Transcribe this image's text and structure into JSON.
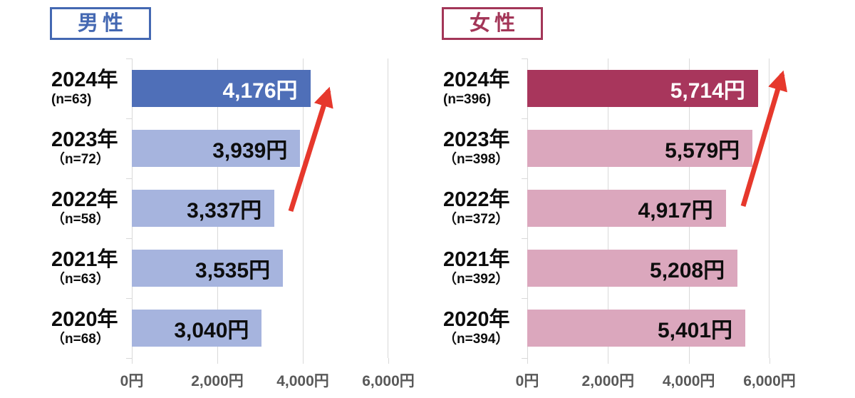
{
  "chart_data": [
    {
      "type": "bar",
      "orientation": "horizontal",
      "title": "男性",
      "categories": [
        "2024年",
        "2023年",
        "2022年",
        "2021年",
        "2020年"
      ],
      "sample_sizes": [
        "(n=63)",
        "（n=72）",
        "（n=58）",
        "（n=63）",
        "（n=68）"
      ],
      "values": [
        4176,
        3939,
        3337,
        3535,
        3040
      ],
      "value_labels": [
        "4,176円",
        "3,939円",
        "3,337円",
        "3,535円",
        "3,040円"
      ],
      "xlim": [
        0,
        6000
      ],
      "x_tick_values": [
        0,
        2000,
        4000,
        6000
      ],
      "x_tick_labels": [
        "0円",
        "2,000円",
        "4,000円",
        "6,000円"
      ],
      "grid": true,
      "legend": "none",
      "highlight_index": 0,
      "annotation": "upward-trend-arrow",
      "colors": {
        "accent": "#4468b2",
        "highlight_bar": "#4f6fb8",
        "bar": "#a6b4de",
        "highlight_value_text": "#ffffff",
        "value_text": "#0d0d0d"
      }
    },
    {
      "type": "bar",
      "orientation": "horizontal",
      "title": "女性",
      "categories": [
        "2024年",
        "2023年",
        "2022年",
        "2021年",
        "2020年"
      ],
      "sample_sizes": [
        "(n=396)",
        "（n=398）",
        "（n=372）",
        "（n=392）",
        "（n=394）"
      ],
      "values": [
        5714,
        5579,
        4917,
        5208,
        5401
      ],
      "value_labels": [
        "5,714円",
        "5,579円",
        "4,917円",
        "5,208円",
        "5,401円"
      ],
      "xlim": [
        0,
        6000
      ],
      "x_tick_values": [
        0,
        2000,
        4000,
        6000
      ],
      "x_tick_labels": [
        "0円",
        "2,000円",
        "4,000円",
        "6,000円"
      ],
      "grid": true,
      "legend": "none",
      "highlight_index": 0,
      "annotation": "upward-trend-arrow",
      "colors": {
        "accent": "#a33658",
        "highlight_bar": "#a8365c",
        "bar": "#dba7bd",
        "highlight_value_text": "#ffffff",
        "value_text": "#0d0d0d"
      }
    }
  ],
  "annotations": {
    "arrow_color": "#e6382c",
    "gridline_color": "#d9d9d9",
    "axis_label_color": "#595959"
  }
}
